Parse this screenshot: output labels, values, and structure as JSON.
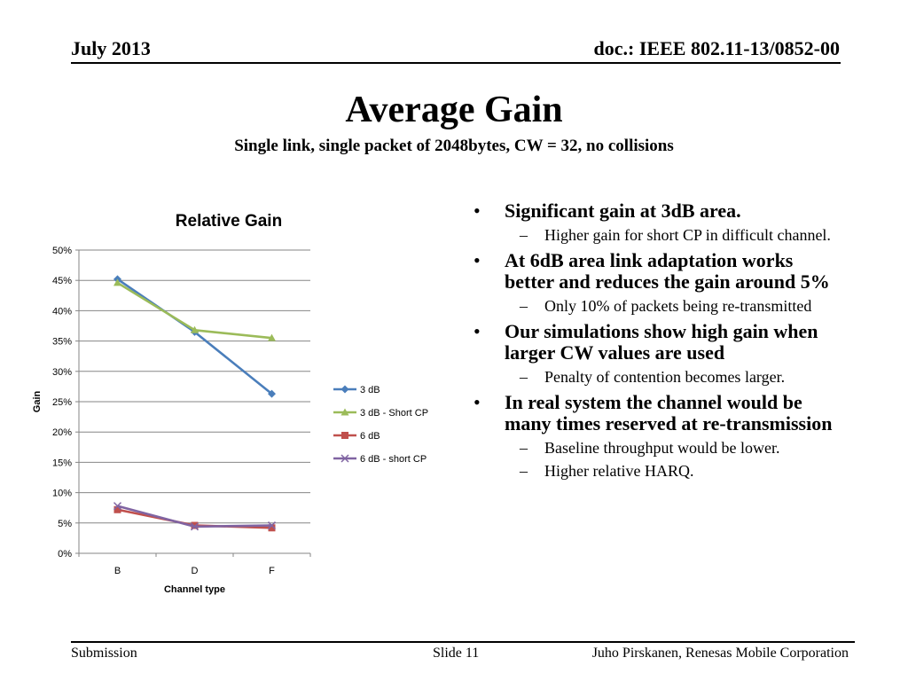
{
  "header": {
    "date": "July 2013",
    "doc": "doc.: IEEE 802.11-13/0852-00"
  },
  "title": "Average Gain",
  "subtitle": "Single link, single packet of 2048bytes, CW = 32, no collisions",
  "chart_data": {
    "type": "line",
    "title": "Relative Gain",
    "xlabel": "Channel type",
    "ylabel": "Gain",
    "categories": [
      "B",
      "D",
      "F"
    ],
    "ylim": [
      0,
      50
    ],
    "yticks": [
      "0%",
      "5%",
      "10%",
      "15%",
      "20%",
      "25%",
      "30%",
      "35%",
      "40%",
      "45%",
      "50%"
    ],
    "grid": true,
    "legend": "right",
    "series": [
      {
        "name": "3 dB",
        "values": [
          45.2,
          36.5,
          26.3
        ],
        "color": "#4a7ebb",
        "marker": "diamond"
      },
      {
        "name": "3 dB - Short CP",
        "values": [
          44.6,
          36.8,
          35.5
        ],
        "color": "#9bbb59",
        "marker": "triangle"
      },
      {
        "name": "6 dB",
        "values": [
          7.2,
          4.6,
          4.2
        ],
        "color": "#c0504d",
        "marker": "square"
      },
      {
        "name": "6 dB - short CP",
        "values": [
          7.8,
          4.4,
          4.6
        ],
        "color": "#8064a2",
        "marker": "x"
      }
    ]
  },
  "bullets": [
    {
      "text": "Significant gain at 3dB area.",
      "sub": [
        "Higher gain for short CP in difficult channel."
      ]
    },
    {
      "text": "At 6dB area link adaptation works better and reduces the gain around 5%",
      "sub": [
        "Only 10% of packets being re-transmitted"
      ]
    },
    {
      "text": "Our simulations show high gain when larger CW values are used",
      "sub": [
        "Penalty of contention becomes larger."
      ]
    },
    {
      "text": "In real system the channel would be many times reserved at re-transmission",
      "sub": [
        "Baseline throughput would be lower.",
        "Higher relative HARQ."
      ]
    }
  ],
  "footer": {
    "left": "Submission",
    "slide": "Slide 11",
    "author": "Juho Pirskanen, Renesas Mobile Corporation"
  }
}
